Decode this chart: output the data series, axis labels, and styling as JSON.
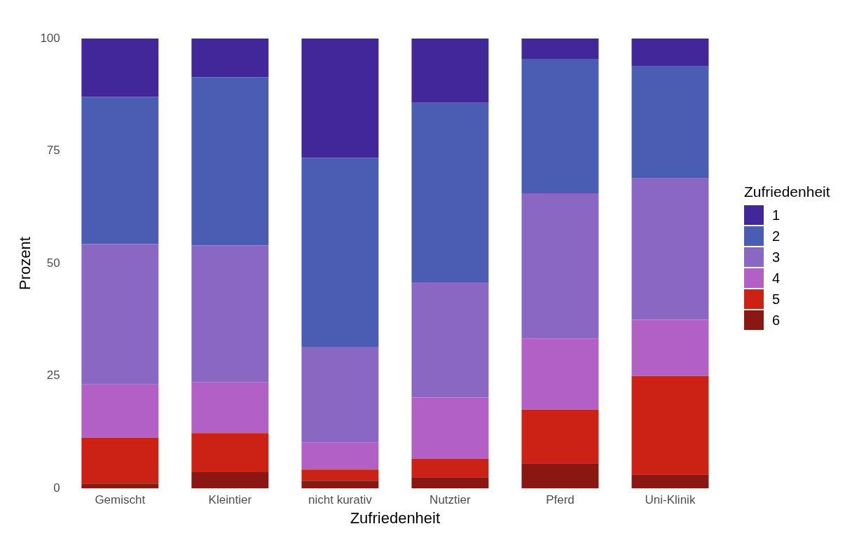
{
  "chart_data": {
    "type": "bar",
    "stacked": true,
    "xlabel": "Zufriedenheit",
    "ylabel": "Prozent",
    "legend_title": "Zufriedenheit",
    "legend": "right",
    "grid": false,
    "categories": [
      "Gemischt",
      "Kleintier",
      "nicht kurativ",
      "Nutztier",
      "Pferd",
      "Uni-Klinik"
    ],
    "ylim": [
      0,
      100
    ],
    "yticks": [
      0,
      25,
      50,
      75,
      100
    ],
    "series": [
      {
        "name": "6",
        "color": "#8b1713",
        "values": [
          1.1,
          3.6,
          1.7,
          2.5,
          5.6,
          3.1
        ]
      },
      {
        "name": "5",
        "color": "#cc2216",
        "values": [
          10.2,
          8.7,
          2.5,
          4.1,
          11.9,
          21.9
        ]
      },
      {
        "name": "4",
        "color": "#b25fc6",
        "values": [
          11.8,
          11.3,
          6.0,
          13.6,
          15.8,
          12.5
        ]
      },
      {
        "name": "3",
        "color": "#8b67c4",
        "values": [
          31.2,
          30.4,
          21.3,
          25.6,
          32.3,
          31.4
        ]
      },
      {
        "name": "2",
        "color": "#4a5db2",
        "values": [
          32.7,
          37.4,
          42.0,
          39.9,
          29.9,
          24.9
        ]
      },
      {
        "name": "1",
        "color": "#41279a",
        "values": [
          13.0,
          8.6,
          26.5,
          14.3,
          4.5,
          6.2
        ]
      }
    ]
  }
}
